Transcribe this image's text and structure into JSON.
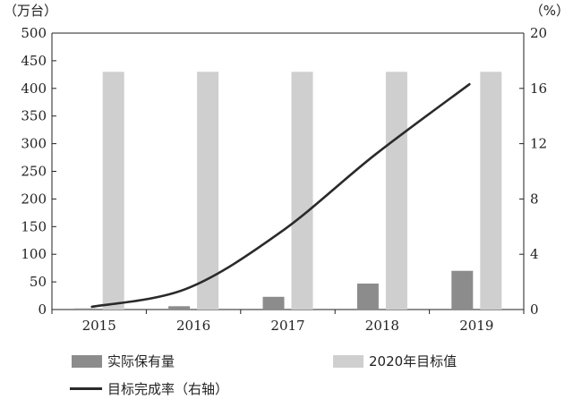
{
  "chart_data": {
    "type": "bar",
    "categories": [
      "2015",
      "2016",
      "2017",
      "2018",
      "2019"
    ],
    "series": [
      {
        "name": "实际保有量",
        "type": "bar",
        "axis": "left",
        "color": "#8c8c8c",
        "values": [
          2,
          6,
          23,
          47,
          70
        ]
      },
      {
        "name": "2020年目标值",
        "type": "bar",
        "axis": "left",
        "color": "#cfcfcf",
        "values": [
          430,
          430,
          430,
          430,
          430
        ]
      },
      {
        "name": "目标完成率（右轴）",
        "type": "line",
        "axis": "right",
        "color": "#2a2a2a",
        "values": [
          0.2,
          1.5,
          5.6,
          11.2,
          16.3
        ]
      }
    ],
    "ylim": [
      0,
      500
    ],
    "y2lim": [
      0,
      20
    ],
    "yticks": [
      "0",
      "50",
      "100",
      "150",
      "200",
      "250",
      "300",
      "350",
      "400",
      "450",
      "500"
    ],
    "y2ticks": [
      "0",
      "4",
      "8",
      "12",
      "16",
      "20"
    ],
    "ylabel": "（万台）",
    "y2label": "（%）",
    "legend_position": "bottom",
    "grid": false
  }
}
